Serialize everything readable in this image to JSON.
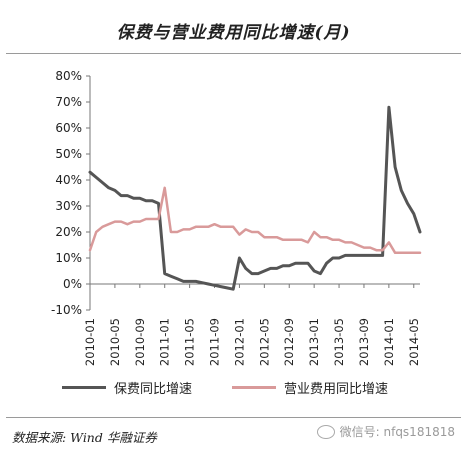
{
  "title": "保费与营业费用同比增速(月)",
  "source_text": "数据来源: Wind 华融证券",
  "watermark_text": "微信号: nfqs181818",
  "chart_data": {
    "type": "line",
    "title": "保费与营业费用同比增速(月)",
    "xlabel": "",
    "ylabel": "",
    "ylim": [
      -0.1,
      0.8
    ],
    "yticks": [
      "-10%",
      "0%",
      "10%",
      "20%",
      "30%",
      "40%",
      "50%",
      "60%",
      "70%",
      "80%"
    ],
    "xticks": [
      "2010-01",
      "2010-05",
      "2010-09",
      "2011-01",
      "2011-05",
      "2011-09",
      "2012-01",
      "2012-05",
      "2012-09",
      "2013-01",
      "2013-05",
      "2013-09",
      "2014-01",
      "2014-05"
    ],
    "x": [
      "2010-01",
      "2010-02",
      "2010-03",
      "2010-04",
      "2010-05",
      "2010-06",
      "2010-07",
      "2010-08",
      "2010-09",
      "2010-10",
      "2010-11",
      "2010-12",
      "2011-01",
      "2011-02",
      "2011-03",
      "2011-04",
      "2011-05",
      "2011-06",
      "2011-07",
      "2011-08",
      "2011-09",
      "2011-10",
      "2011-11",
      "2011-12",
      "2012-01",
      "2012-02",
      "2012-03",
      "2012-04",
      "2012-05",
      "2012-06",
      "2012-07",
      "2012-08",
      "2012-09",
      "2012-10",
      "2012-11",
      "2012-12",
      "2013-01",
      "2013-02",
      "2013-03",
      "2013-04",
      "2013-05",
      "2013-06",
      "2013-07",
      "2013-08",
      "2013-09",
      "2013-10",
      "2013-11",
      "2013-12",
      "2014-01",
      "2014-02",
      "2014-03",
      "2014-04",
      "2014-05",
      "2014-06"
    ],
    "grid": false,
    "legend_position": "bottom",
    "series": [
      {
        "name": "保费同比增速",
        "color": "#555555",
        "values": [
          0.43,
          0.41,
          0.39,
          0.37,
          0.36,
          0.34,
          0.34,
          0.33,
          0.33,
          0.32,
          0.32,
          0.31,
          0.04,
          0.03,
          0.02,
          0.01,
          0.01,
          0.01,
          0.005,
          0.0,
          -0.005,
          -0.01,
          -0.015,
          -0.02,
          0.1,
          0.06,
          0.04,
          0.04,
          0.05,
          0.06,
          0.06,
          0.07,
          0.07,
          0.08,
          0.08,
          0.08,
          0.05,
          0.04,
          0.08,
          0.1,
          0.1,
          0.11,
          0.11,
          0.11,
          0.11,
          0.11,
          0.11,
          0.11,
          0.68,
          0.45,
          0.36,
          0.31,
          0.27,
          0.2
        ]
      },
      {
        "name": "营业费用同比增速",
        "color": "#d99a9a",
        "values": [
          0.13,
          0.2,
          0.22,
          0.23,
          0.24,
          0.24,
          0.23,
          0.24,
          0.24,
          0.25,
          0.25,
          0.25,
          0.37,
          0.2,
          0.2,
          0.21,
          0.21,
          0.22,
          0.22,
          0.22,
          0.23,
          0.22,
          0.22,
          0.22,
          0.19,
          0.21,
          0.2,
          0.2,
          0.18,
          0.18,
          0.18,
          0.17,
          0.17,
          0.17,
          0.17,
          0.16,
          0.2,
          0.18,
          0.18,
          0.17,
          0.17,
          0.16,
          0.16,
          0.15,
          0.14,
          0.14,
          0.13,
          0.13,
          0.16,
          0.12,
          0.12,
          0.12,
          0.12,
          0.12
        ]
      }
    ]
  }
}
